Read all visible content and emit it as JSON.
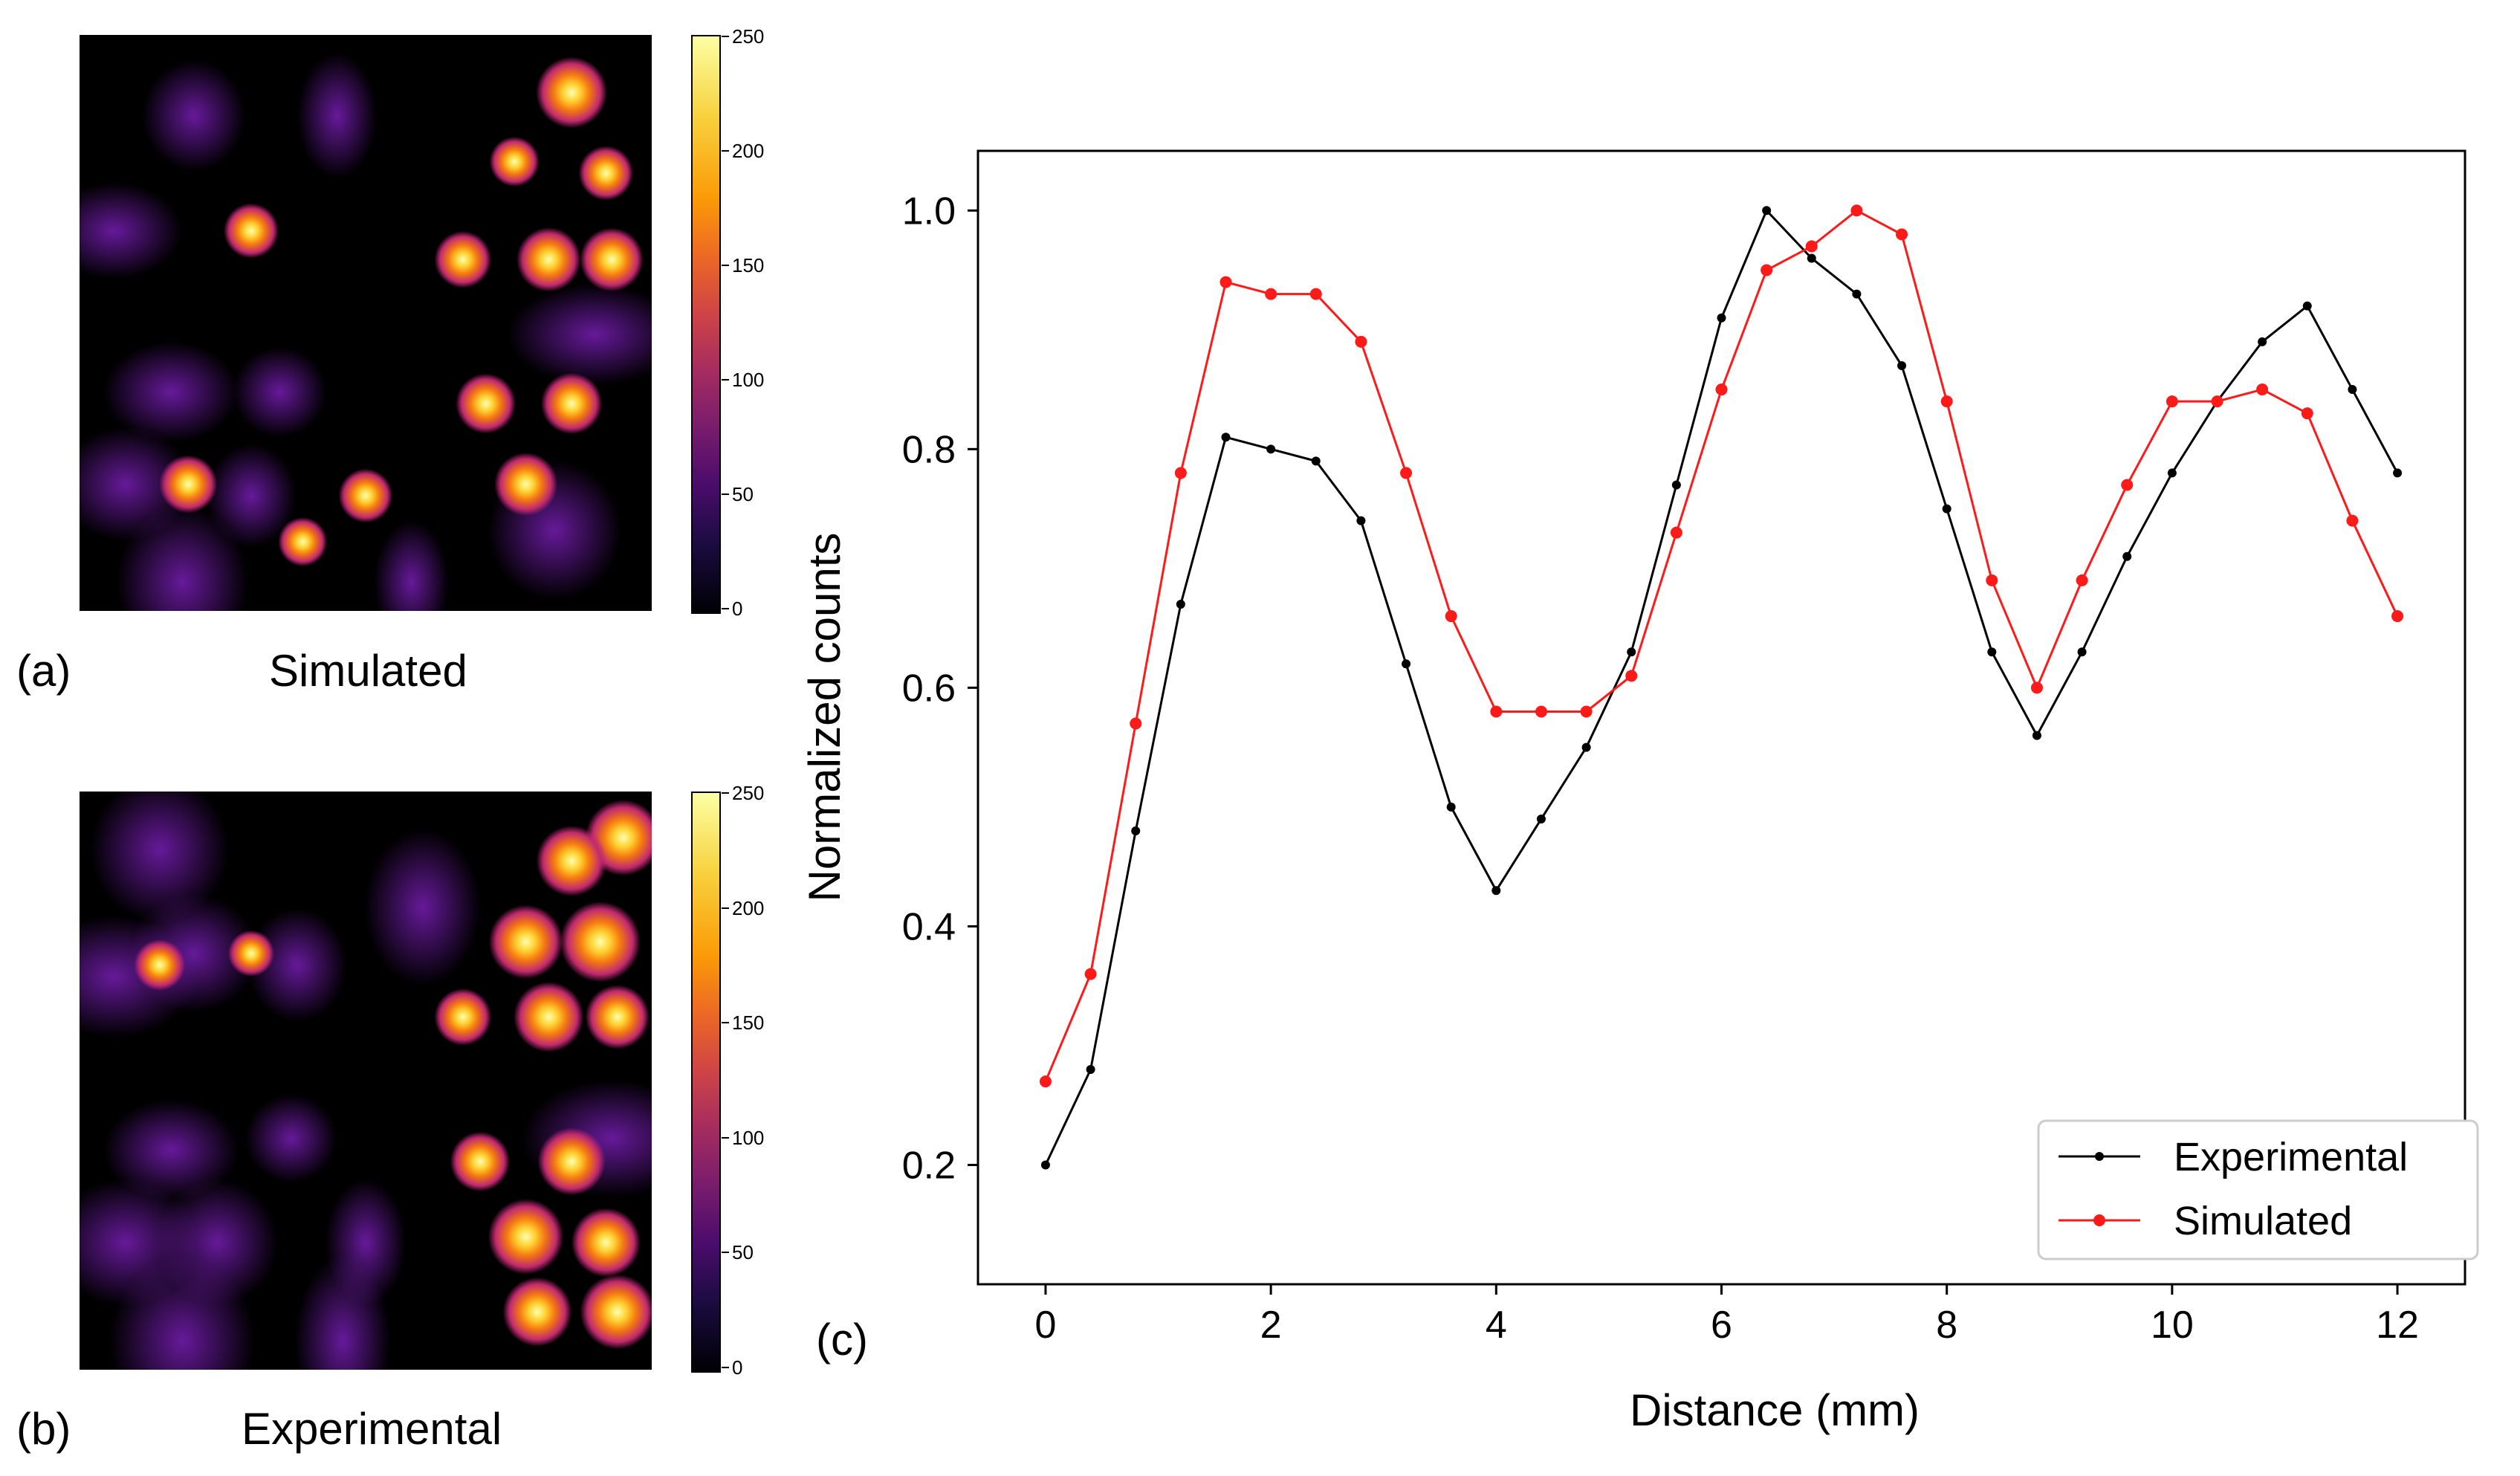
{
  "panels": {
    "a": {
      "label": "(a)",
      "title": "Simulated"
    },
    "b": {
      "label": "(b)",
      "title": "Experimental"
    },
    "c": {
      "label": "(c)"
    }
  },
  "colorbar": {
    "ticks": [
      "250",
      "200",
      "150",
      "100",
      "50",
      "0"
    ]
  },
  "colors": {
    "experimental": "#000000",
    "simulated": "#ff1a1a"
  },
  "chart_data": {
    "type": "line",
    "xlabel": "Distance (mm)",
    "ylabel": "Normalized counts",
    "xlim": [
      -0.6,
      12.6
    ],
    "ylim": [
      0.1,
      1.05
    ],
    "xticks": [
      0,
      2,
      4,
      6,
      8,
      10,
      12
    ],
    "yticks": [
      0.2,
      0.4,
      0.6,
      0.8,
      1.0
    ],
    "ytick_labels": [
      "0.2",
      "0.4",
      "0.6",
      "0.8",
      "1.0"
    ],
    "legend_position": "lower-right",
    "x": [
      0,
      0.4,
      0.8,
      1.2,
      1.6,
      2.0,
      2.4,
      2.8,
      3.2,
      3.6,
      4.0,
      4.4,
      4.8,
      5.2,
      5.6,
      6.0,
      6.4,
      6.8,
      7.2,
      7.6,
      8.0,
      8.4,
      8.8,
      9.2,
      9.6,
      10.0,
      10.4,
      10.8,
      11.2,
      11.6,
      12.0
    ],
    "series": [
      {
        "name": "Experimental",
        "color": "#000000",
        "values": [
          0.2,
          0.28,
          0.48,
          0.67,
          0.81,
          0.8,
          0.79,
          0.74,
          0.62,
          0.5,
          0.43,
          0.49,
          0.55,
          0.63,
          0.77,
          0.91,
          1.0,
          0.96,
          0.93,
          0.87,
          0.75,
          0.63,
          0.56,
          0.63,
          0.71,
          0.78,
          0.84,
          0.89,
          0.92,
          0.85,
          0.78
        ]
      },
      {
        "name": "Simulated",
        "color": "#ff1a1a",
        "values": [
          0.27,
          0.36,
          0.57,
          0.78,
          0.94,
          0.93,
          0.93,
          0.89,
          0.78,
          0.66,
          0.58,
          0.58,
          0.58,
          0.61,
          0.73,
          0.85,
          0.95,
          0.97,
          1.0,
          0.98,
          0.84,
          0.69,
          0.6,
          0.69,
          0.77,
          0.84,
          0.84,
          0.85,
          0.83,
          0.74,
          0.66
        ]
      }
    ]
  }
}
